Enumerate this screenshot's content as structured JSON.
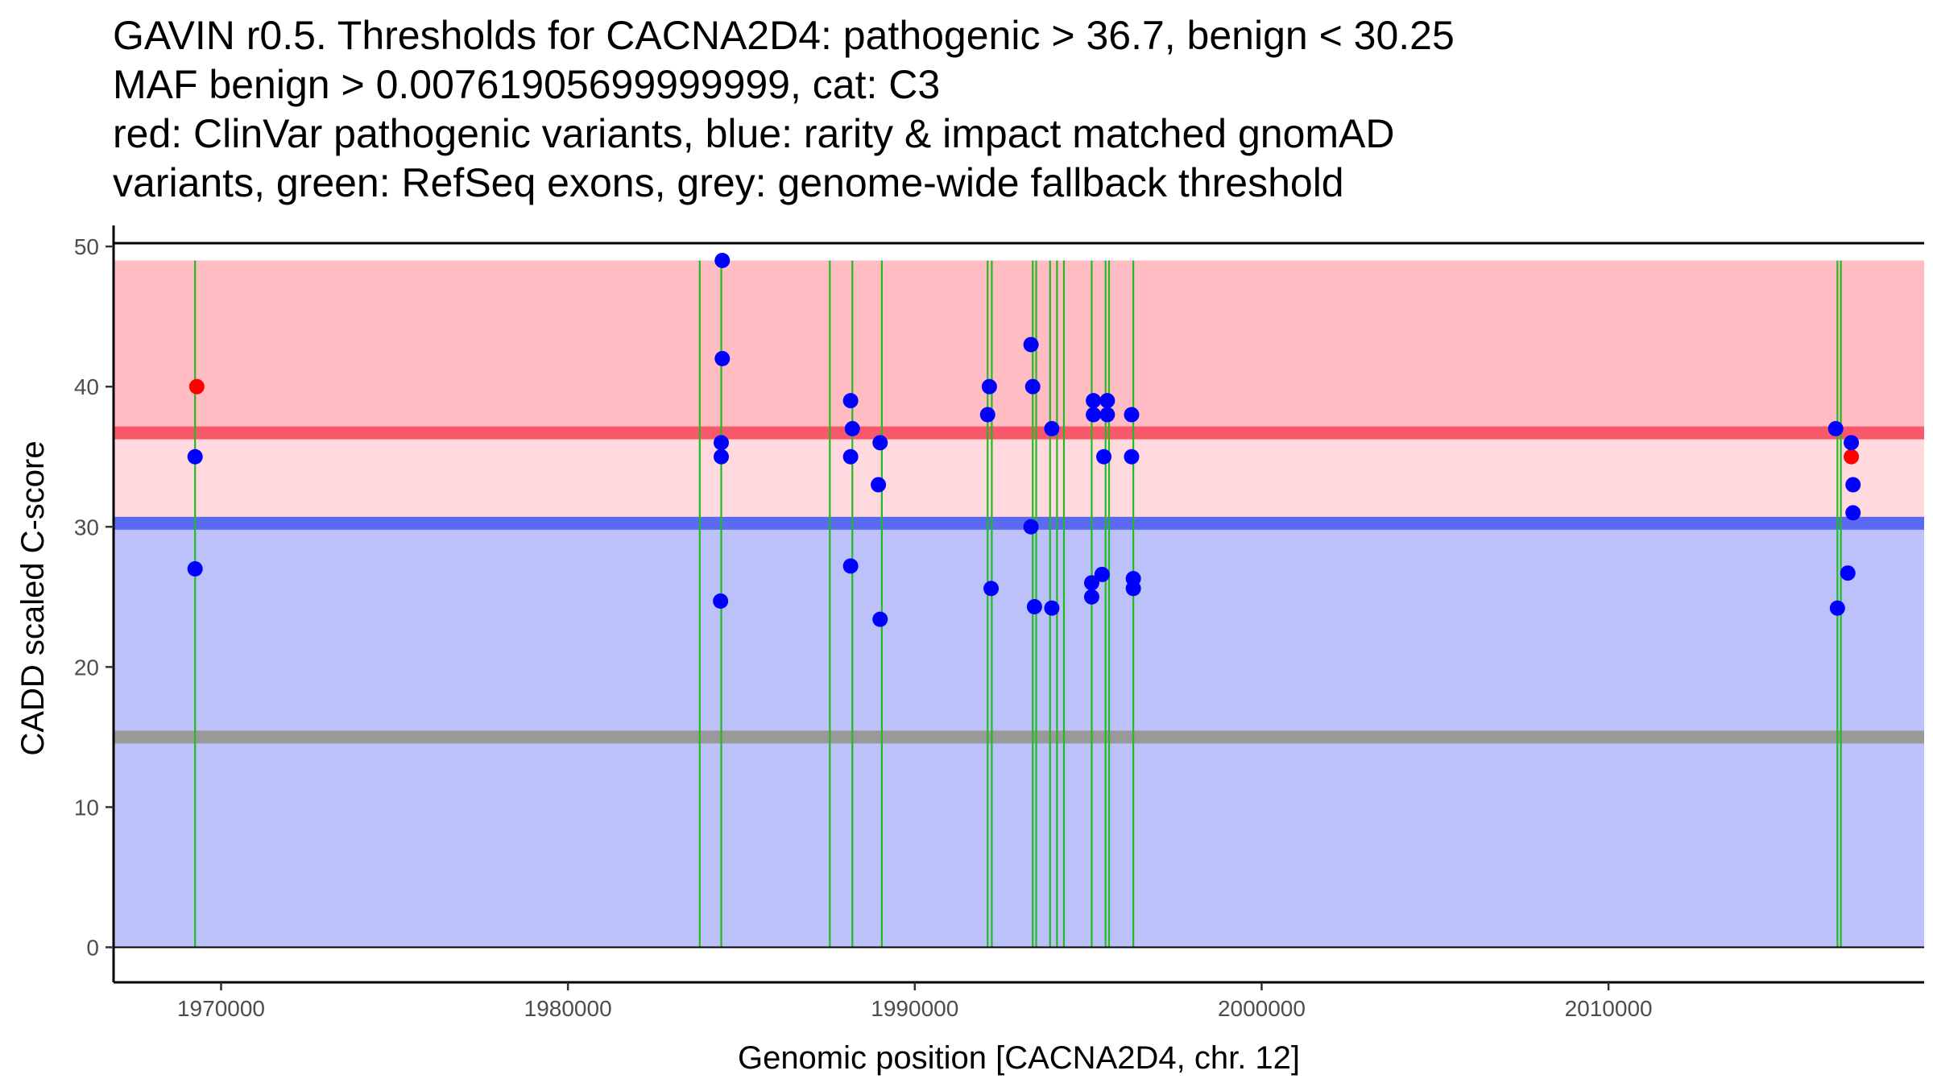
{
  "title_lines": [
    "GAVIN r0.5. Thresholds for CACNA2D4: pathogenic > 36.7, benign < 30.25",
    "MAF benign > 0.00761905699999999, cat: C3",
    "red: ClinVar pathogenic variants, blue: rarity & impact matched gnomAD",
    "variants, green: RefSeq exons, grey: genome-wide fallback threshold"
  ],
  "chart_data": {
    "type": "scatter",
    "title": "GAVIN r0.5. Thresholds for CACNA2D4: pathogenic > 36.7, benign < 30.25 MAF benign > 0.00761905699999999, cat: C3 red: ClinVar pathogenic variants, blue: rarity & impact matched gnomAD variants, green: RefSeq exons, grey: genome-wide fallback threshold",
    "xlabel": "Genomic position [CACNA2D4, chr. 12]",
    "ylabel": "CADD scaled C-score",
    "xlim": [
      1966900,
      2019100
    ],
    "ylim": [
      -2.5,
      51.5
    ],
    "x_ticks": [
      1970000,
      1980000,
      1990000,
      2000000,
      2010000
    ],
    "x_tick_labels": [
      "1970000",
      "1980000",
      "1990000",
      "2000000",
      "2010000"
    ],
    "y_ticks": [
      0,
      10,
      20,
      30,
      40,
      50
    ],
    "y_tick_labels": [
      "0",
      "10",
      "20",
      "30",
      "40",
      "50"
    ],
    "bands": [
      {
        "name": "pathogenic-zone",
        "from": 36.7,
        "to": 49,
        "color": "#ffbcc3"
      },
      {
        "name": "intermediate-zone",
        "from": 30.25,
        "to": 36.7,
        "color": "#ffd9dd"
      },
      {
        "name": "benign-zone",
        "from": 0,
        "to": 30.25,
        "color": "#bcc1f9"
      }
    ],
    "thresholds": [
      {
        "name": "pathogenic-threshold",
        "value": 36.7,
        "color": "#f9586a"
      },
      {
        "name": "benign-threshold",
        "value": 30.25,
        "color": "#5a6bf2"
      },
      {
        "name": "fallback-threshold",
        "value": 15.0,
        "color": "#999999"
      }
    ],
    "exons": [
      1969250,
      1983800,
      1984420,
      1987550,
      1988200,
      1989050,
      1992100,
      1992220,
      1993400,
      1993500,
      1993900,
      1994100,
      1994300,
      1995100,
      1995500,
      1995600,
      1996300,
      2016600,
      2016700
    ],
    "series": [
      {
        "name": "ClinVar pathogenic variants",
        "color": "#ff0000",
        "points": [
          [
            1969300,
            40
          ],
          [
            2017000,
            35
          ]
        ]
      },
      {
        "name": "rarity & impact matched gnomAD variants",
        "color": "#0000ff",
        "points": [
          [
            1969250,
            35
          ],
          [
            1969250,
            27
          ],
          [
            1984450,
            49
          ],
          [
            1984450,
            42
          ],
          [
            1984420,
            36
          ],
          [
            1984420,
            35
          ],
          [
            1984400,
            24.7
          ],
          [
            1988150,
            39
          ],
          [
            1988200,
            37
          ],
          [
            1988150,
            35
          ],
          [
            1988150,
            27.2
          ],
          [
            1989000,
            36
          ],
          [
            1988950,
            33
          ],
          [
            1989000,
            23.4
          ],
          [
            1992150,
            40
          ],
          [
            1992100,
            38
          ],
          [
            1992200,
            25.6
          ],
          [
            1993350,
            43
          ],
          [
            1993400,
            40
          ],
          [
            1993350,
            30
          ],
          [
            1993450,
            24.3
          ],
          [
            1993950,
            37
          ],
          [
            1993950,
            24.2
          ],
          [
            1995150,
            39
          ],
          [
            1995150,
            38
          ],
          [
            1995100,
            26
          ],
          [
            1995100,
            25
          ],
          [
            1995450,
            35
          ],
          [
            1995400,
            26.6
          ],
          [
            1995550,
            39
          ],
          [
            1995550,
            38
          ],
          [
            1996250,
            38
          ],
          [
            1996250,
            35
          ],
          [
            1996300,
            26.3
          ],
          [
            1996300,
            25.6
          ],
          [
            2016550,
            37
          ],
          [
            2016600,
            24.2
          ],
          [
            2017000,
            36
          ],
          [
            2017050,
            33
          ],
          [
            2017050,
            31
          ],
          [
            2016900,
            26.7
          ]
        ]
      }
    ]
  }
}
